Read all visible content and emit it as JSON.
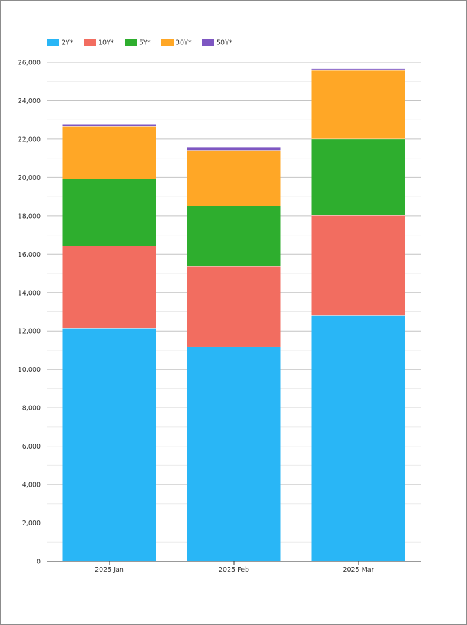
{
  "chart_data": {
    "type": "bar",
    "stacked": true,
    "categories": [
      "2025 Jan",
      "2025 Feb",
      "2025 Mar"
    ],
    "series": [
      {
        "name": "2Y*",
        "color": "#29b6f6",
        "values": [
          12150,
          11180,
          12830
        ]
      },
      {
        "name": "10Y*",
        "color": "#f26d60",
        "values": [
          4280,
          4180,
          5200
        ]
      },
      {
        "name": "5Y*",
        "color": "#2eae2e",
        "values": [
          3500,
          3170,
          3980
        ]
      },
      {
        "name": "30Y*",
        "color": "#ffa726",
        "values": [
          2750,
          2880,
          3600
        ]
      },
      {
        "name": "50Y*",
        "color": "#7e57c2",
        "values": [
          110,
          160,
          90
        ]
      }
    ],
    "title": "",
    "xlabel": "",
    "ylabel": "",
    "ylim": [
      0,
      26000
    ],
    "yticks": [
      0,
      2000,
      4000,
      6000,
      8000,
      10000,
      12000,
      14000,
      16000,
      18000,
      20000,
      22000,
      24000,
      26000
    ],
    "ytick_labels": [
      "0",
      "2,000",
      "4,000",
      "6,000",
      "8,000",
      "10,000",
      "12,000",
      "14,000",
      "16,000",
      "18,000",
      "20,000",
      "22,000",
      "24,000",
      "26,000"
    ],
    "grid": true,
    "legend_position": "top-left"
  }
}
